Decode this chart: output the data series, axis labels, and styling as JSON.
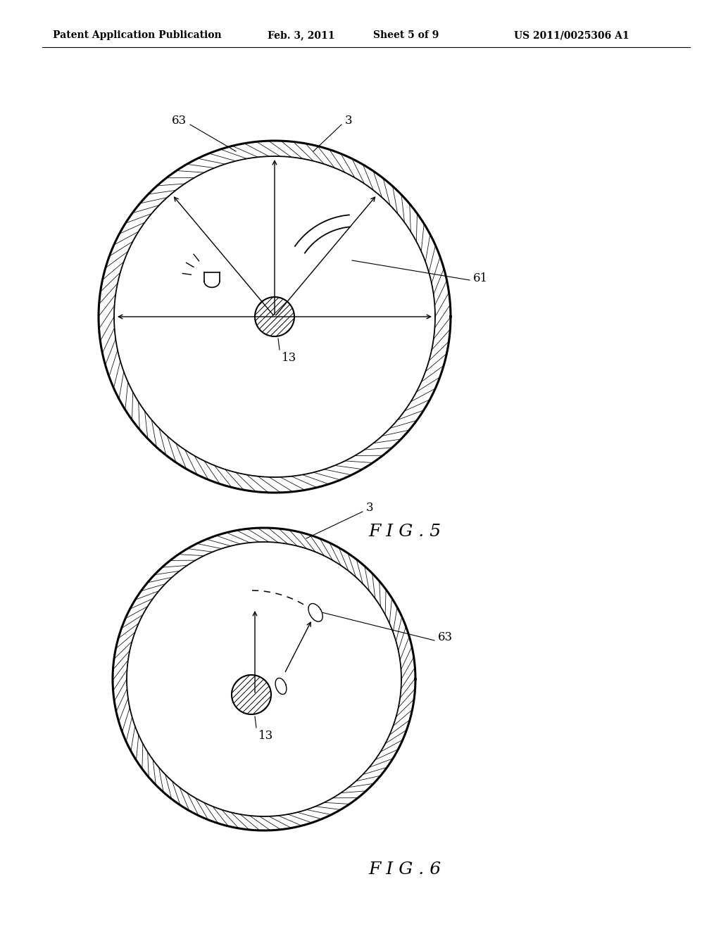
{
  "background_color": "#ffffff",
  "header_text": "Patent Application Publication",
  "header_date": "Feb. 3, 2011",
  "header_sheet": "Sheet 5 of 9",
  "header_patent": "US 2011/0025306 A1",
  "fig5_label": "F I G . 5",
  "fig6_label": "F I G . 6",
  "label_3": "3",
  "label_63": "63",
  "label_61": "61",
  "label_13": "13"
}
